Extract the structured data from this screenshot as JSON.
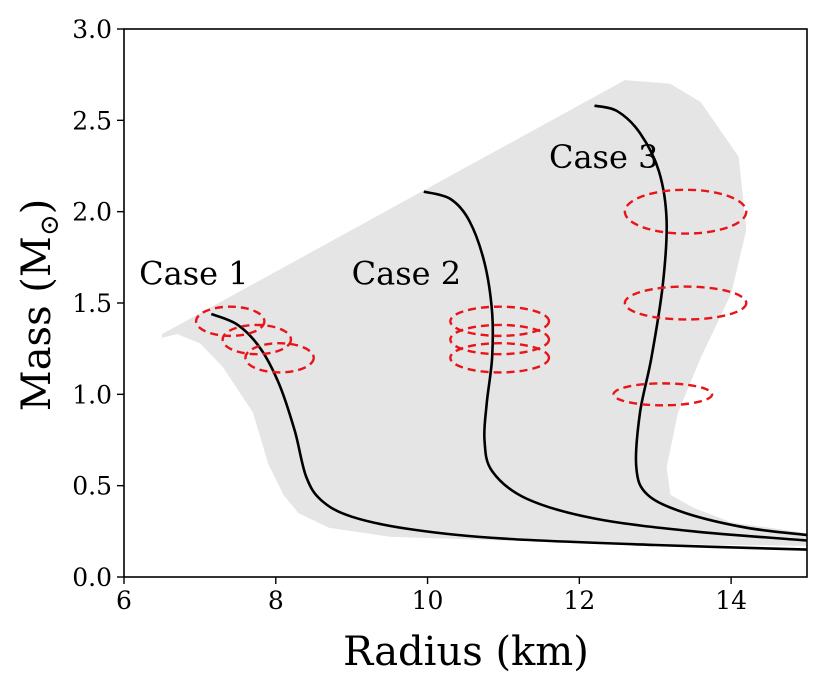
{
  "chart_data": {
    "type": "line",
    "xlabel": "Radius (km)",
    "ylabel_text": "Mass (M",
    "ylabel_symbol": "⊙",
    "ylabel_close": ")",
    "xlim": [
      6,
      15
    ],
    "ylim": [
      0,
      3.0
    ],
    "xticks": [
      6,
      8,
      10,
      12,
      14
    ],
    "yticks": [
      0,
      0.5,
      1.0,
      1.5,
      2.0,
      2.5,
      3.0
    ],
    "xtick_labels": [
      "6",
      "8",
      "10",
      "12",
      "14"
    ],
    "ytick_labels": [
      "0.0",
      "0.5",
      "1.0",
      "1.5",
      "2.0",
      "2.5",
      "3.0"
    ],
    "grid": false,
    "colors": {
      "band": "#e5e5e5",
      "curve": "#000000",
      "ellipse": "#e8141a"
    },
    "band": {
      "points": [
        [
          6.5,
          0.0
        ],
        [
          6.5,
          1.31
        ],
        [
          6.7,
          1.33
        ],
        [
          7.0,
          1.28
        ],
        [
          7.3,
          1.15
        ],
        [
          7.7,
          0.9
        ],
        [
          7.9,
          0.62
        ],
        [
          8.1,
          0.45
        ],
        [
          8.3,
          0.35
        ],
        [
          8.7,
          0.27
        ],
        [
          9.5,
          0.22
        ],
        [
          11,
          0.2
        ],
        [
          13,
          0.18
        ],
        [
          15,
          0.17
        ],
        [
          15,
          0.24
        ],
        [
          14,
          0.3
        ],
        [
          13.5,
          0.38
        ],
        [
          13.2,
          0.45
        ],
        [
          13.15,
          0.6
        ],
        [
          13.3,
          0.9
        ],
        [
          13.6,
          1.2
        ],
        [
          14.0,
          1.55
        ],
        [
          14.2,
          1.9
        ],
        [
          14.1,
          2.3
        ],
        [
          13.6,
          2.6
        ],
        [
          13.2,
          2.7
        ],
        [
          12.6,
          2.72
        ],
        [
          6.5,
          1.33
        ]
      ]
    },
    "series": [
      {
        "points": [
          [
            7.15,
            1.44
          ],
          [
            7.5,
            1.38
          ],
          [
            7.8,
            1.25
          ],
          [
            8.05,
            1.05
          ],
          [
            8.25,
            0.8
          ],
          [
            8.4,
            0.55
          ],
          [
            8.6,
            0.42
          ],
          [
            9.0,
            0.33
          ],
          [
            9.8,
            0.26
          ],
          [
            11,
            0.21
          ],
          [
            13,
            0.175
          ],
          [
            15,
            0.15
          ]
        ]
      },
      {
        "points": [
          [
            9.95,
            2.11
          ],
          [
            10.3,
            2.07
          ],
          [
            10.55,
            1.95
          ],
          [
            10.75,
            1.72
          ],
          [
            10.85,
            1.45
          ],
          [
            10.85,
            1.2
          ],
          [
            10.78,
            0.95
          ],
          [
            10.75,
            0.75
          ],
          [
            10.85,
            0.58
          ],
          [
            11.3,
            0.43
          ],
          [
            12.2,
            0.32
          ],
          [
            13.5,
            0.25
          ],
          [
            15,
            0.2
          ]
        ]
      },
      {
        "points": [
          [
            12.2,
            2.58
          ],
          [
            12.5,
            2.55
          ],
          [
            12.8,
            2.43
          ],
          [
            13.05,
            2.22
          ],
          [
            13.15,
            1.95
          ],
          [
            13.1,
            1.6
          ],
          [
            12.95,
            1.2
          ],
          [
            12.8,
            0.9
          ],
          [
            12.75,
            0.6
          ],
          [
            12.9,
            0.45
          ],
          [
            13.4,
            0.35
          ],
          [
            14.2,
            0.27
          ],
          [
            15,
            0.23
          ]
        ]
      }
    ],
    "ellipses": [
      {
        "cx": 7.4,
        "cy": 1.4,
        "rx": 0.45,
        "ry": 0.08
      },
      {
        "cx": 7.75,
        "cy": 1.3,
        "rx": 0.45,
        "ry": 0.08
      },
      {
        "cx": 8.05,
        "cy": 1.2,
        "rx": 0.45,
        "ry": 0.08
      },
      {
        "cx": 10.95,
        "cy": 1.4,
        "rx": 0.65,
        "ry": 0.08
      },
      {
        "cx": 10.95,
        "cy": 1.3,
        "rx": 0.65,
        "ry": 0.08
      },
      {
        "cx": 10.95,
        "cy": 1.2,
        "rx": 0.65,
        "ry": 0.08
      },
      {
        "cx": 13.1,
        "cy": 1.0,
        "rx": 0.65,
        "ry": 0.06
      },
      {
        "cx": 13.4,
        "cy": 1.5,
        "rx": 0.8,
        "ry": 0.09
      },
      {
        "cx": 13.4,
        "cy": 2.0,
        "rx": 0.8,
        "ry": 0.12
      }
    ],
    "annotations": [
      {
        "text": "Case 1",
        "x": 6.2,
        "y": 1.6
      },
      {
        "text": "Case 2",
        "x": 9.0,
        "y": 1.6
      },
      {
        "text": "Case 3",
        "x": 11.6,
        "y": 2.24
      }
    ]
  }
}
